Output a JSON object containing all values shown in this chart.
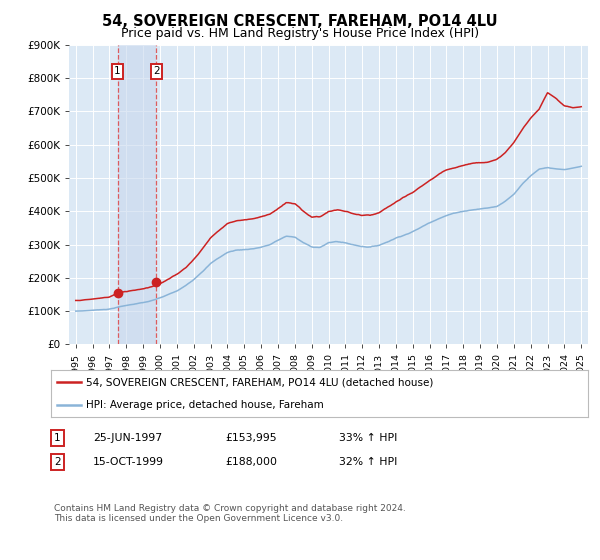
{
  "title": "54, SOVEREIGN CRESCENT, FAREHAM, PO14 4LU",
  "subtitle": "Price paid vs. HM Land Registry's House Price Index (HPI)",
  "title_fontsize": 10.5,
  "subtitle_fontsize": 9,
  "background_color": "#ffffff",
  "plot_bg_color": "#dce9f5",
  "grid_color": "#ffffff",
  "ylabel_ticks": [
    "£0",
    "£100K",
    "£200K",
    "£300K",
    "£400K",
    "£500K",
    "£600K",
    "£700K",
    "£800K",
    "£900K"
  ],
  "ytick_values": [
    0,
    100000,
    200000,
    300000,
    400000,
    500000,
    600000,
    700000,
    800000,
    900000
  ],
  "ylim": [
    0,
    900000
  ],
  "xlim_start": 1994.6,
  "xlim_end": 2025.4,
  "hpi_color": "#8ab4d8",
  "price_color": "#cc2222",
  "vline_color": "#dd4444",
  "span_color": "#c8d8ee",
  "sale1_year": 1997.48,
  "sale1_price": 153995,
  "sale1_label": "1",
  "sale1_date": "25-JUN-1997",
  "sale1_pct": "33%",
  "sale2_year": 1999.79,
  "sale2_price": 188000,
  "sale2_label": "2",
  "sale2_date": "15-OCT-1999",
  "sale2_pct": "32%",
  "legend_line1": "54, SOVEREIGN CRESCENT, FAREHAM, PO14 4LU (detached house)",
  "legend_line2": "HPI: Average price, detached house, Fareham",
  "footer": "Contains HM Land Registry data © Crown copyright and database right 2024.\nThis data is licensed under the Open Government Licence v3.0.",
  "xtick_years": [
    1995,
    1996,
    1997,
    1998,
    1999,
    2000,
    2001,
    2002,
    2003,
    2004,
    2005,
    2006,
    2007,
    2008,
    2009,
    2010,
    2011,
    2012,
    2013,
    2014,
    2015,
    2016,
    2017,
    2018,
    2019,
    2020,
    2021,
    2022,
    2023,
    2024,
    2025
  ],
  "hpi_points": {
    "1995.0": 100000,
    "1995.5": 101000,
    "1996.0": 103000,
    "1996.5": 105000,
    "1997.0": 107000,
    "1997.5": 113000,
    "1998.0": 118000,
    "1998.5": 123000,
    "1999.0": 127000,
    "1999.5": 132000,
    "2000.0": 140000,
    "2000.5": 150000,
    "2001.0": 160000,
    "2001.5": 175000,
    "2002.0": 195000,
    "2002.5": 220000,
    "2003.0": 245000,
    "2003.5": 262000,
    "2004.0": 278000,
    "2004.5": 285000,
    "2005.0": 287000,
    "2005.5": 290000,
    "2006.0": 295000,
    "2006.5": 302000,
    "2007.0": 315000,
    "2007.5": 328000,
    "2008.0": 325000,
    "2008.5": 308000,
    "2009.0": 295000,
    "2009.5": 295000,
    "2010.0": 308000,
    "2010.5": 312000,
    "2011.0": 308000,
    "2011.5": 302000,
    "2012.0": 298000,
    "2012.5": 297000,
    "2013.0": 302000,
    "2013.5": 313000,
    "2014.0": 325000,
    "2014.5": 335000,
    "2015.0": 345000,
    "2015.5": 358000,
    "2016.0": 372000,
    "2016.5": 385000,
    "2017.0": 395000,
    "2017.5": 402000,
    "2018.0": 408000,
    "2018.5": 412000,
    "2019.0": 415000,
    "2019.5": 418000,
    "2020.0": 422000,
    "2020.5": 438000,
    "2021.0": 460000,
    "2021.5": 490000,
    "2022.0": 515000,
    "2022.5": 535000,
    "2023.0": 540000,
    "2023.5": 535000,
    "2024.0": 532000,
    "2024.5": 535000,
    "2025.0": 540000
  },
  "price_points": {
    "1995.0": 132000,
    "1995.5": 134000,
    "1996.0": 136000,
    "1996.5": 139000,
    "1997.0": 142000,
    "1997.5": 155000,
    "1998.0": 158000,
    "1998.5": 163000,
    "1999.0": 168000,
    "1999.5": 175000,
    "2000.0": 185000,
    "2000.5": 198000,
    "2001.0": 212000,
    "2001.5": 232000,
    "2002.0": 258000,
    "2002.5": 290000,
    "2003.0": 324000,
    "2003.5": 346000,
    "2004.0": 367000,
    "2004.5": 376000,
    "2005.0": 379000,
    "2005.5": 383000,
    "2006.0": 389000,
    "2006.5": 398000,
    "2007.0": 415000,
    "2007.5": 432000,
    "2008.0": 428000,
    "2008.5": 406000,
    "2009.0": 389000,
    "2009.5": 390000,
    "2010.0": 406000,
    "2010.5": 411000,
    "2011.0": 406000,
    "2011.5": 398000,
    "2012.0": 393000,
    "2012.5": 392000,
    "2013.0": 398000,
    "2013.5": 413000,
    "2014.0": 429000,
    "2014.5": 442000,
    "2015.0": 455000,
    "2015.5": 473000,
    "2016.0": 491000,
    "2016.5": 508000,
    "2017.0": 521000,
    "2017.5": 530000,
    "2018.0": 538000,
    "2018.5": 544000,
    "2019.0": 547000,
    "2019.5": 551000,
    "2020.0": 557000,
    "2020.5": 578000,
    "2021.0": 607000,
    "2021.5": 647000,
    "2022.0": 680000,
    "2022.5": 706000,
    "2023.0": 757000,
    "2023.5": 740000,
    "2024.0": 718000,
    "2024.5": 712000,
    "2025.0": 715000
  }
}
